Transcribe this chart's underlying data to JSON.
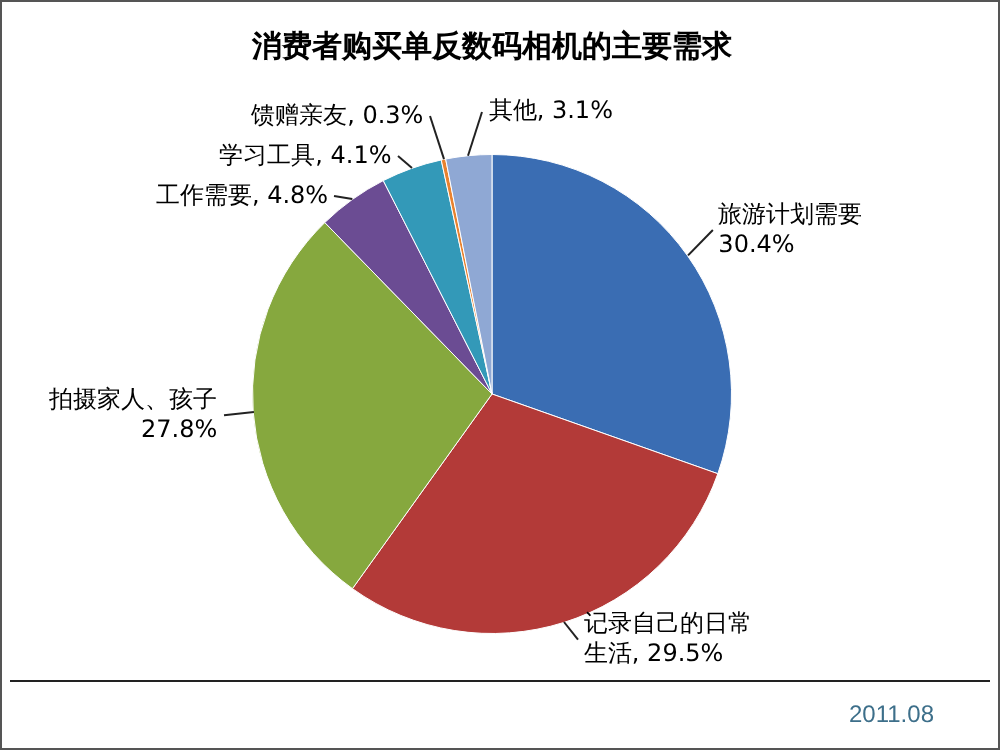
{
  "chart_data": {
    "type": "pie",
    "title": "消费者购买单反数码相机的主要需求",
    "categories": [
      "旅游计划需要",
      "记录自己的日常生活",
      "拍摄家人、孩子",
      "工作需要",
      "学习工具",
      "馈赠亲友",
      "其他"
    ],
    "values": [
      30.4,
      29.5,
      27.8,
      4.8,
      4.1,
      0.3,
      3.1
    ],
    "value_labels": [
      "30.4%",
      "29.5%",
      "27.8%",
      "4.8%",
      "4.1%",
      "0.3%",
      "3.1%"
    ],
    "colors": [
      "#3a6db3",
      "#b33a38",
      "#86a83e",
      "#6b4c93",
      "#3399b8",
      "#e8822f",
      "#8fa8d4"
    ],
    "legend": false,
    "annotations": [
      "2011.08"
    ]
  }
}
